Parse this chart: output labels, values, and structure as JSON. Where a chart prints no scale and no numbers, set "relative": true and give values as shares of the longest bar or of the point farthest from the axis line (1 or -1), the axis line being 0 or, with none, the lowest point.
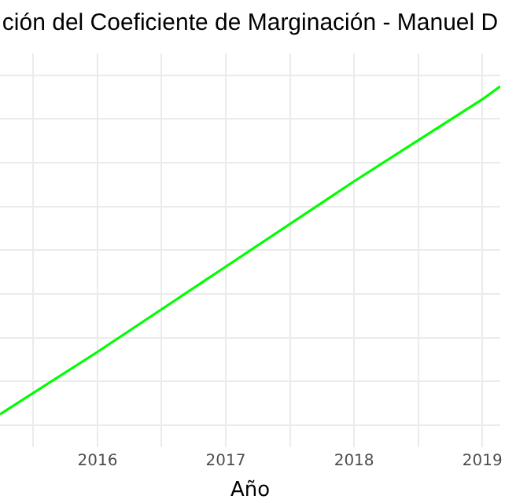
{
  "chart_data": {
    "type": "line",
    "title": "ción del Coeficiente de Marginación - Manuel D",
    "xlabel": "Año",
    "relative": true,
    "grid": true,
    "legend": false,
    "marker": "none",
    "line_style": "solid",
    "xlim": [
      2015.24,
      2019.14
    ],
    "xticks": [
      {
        "value": 2015.5,
        "label": null
      },
      2016,
      {
        "value": 2016.5,
        "label": null
      },
      2017,
      {
        "value": 2017.5,
        "label": null
      },
      2018,
      {
        "value": 2018.5,
        "label": null
      },
      2019
    ],
    "series": [
      {
        "color": "#00ff00",
        "x": [
          2015.24,
          2016,
          2017,
          2018,
          2019,
          2019.14
        ],
        "values": [
          0,
          0.19,
          0.45,
          0.71,
          0.96,
          1
        ]
      }
    ]
  }
}
